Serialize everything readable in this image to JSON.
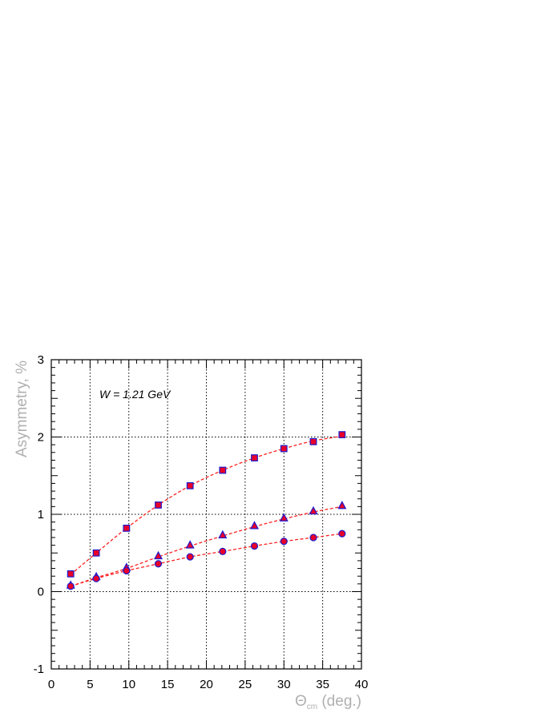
{
  "chart_data": {
    "type": "scatter",
    "title": "",
    "xlabel_main": "Θ",
    "xlabel_sub": "cm",
    "xlabel_rest": " (deg.)",
    "ylabel": "Asymmetry, %",
    "annotation": "W = 1.21 GeV",
    "xlim": [
      0,
      40
    ],
    "ylim": [
      -1,
      3
    ],
    "xticks": [
      0,
      5,
      10,
      15,
      20,
      25,
      30,
      35,
      40
    ],
    "yticks": [
      -1,
      0,
      1,
      2,
      3
    ],
    "grid": true,
    "colors": {
      "marker_fill": "#e8002a",
      "marker_edge": "#1c1cd0",
      "curve": "#ff2020",
      "frame": "#000000",
      "grid": "#000000"
    },
    "series": [
      {
        "marker": "square",
        "x": [
          2.5,
          5.8,
          9.7,
          13.8,
          17.9,
          22.1,
          26.2,
          30.0,
          33.8,
          37.5
        ],
        "y": [
          0.23,
          0.5,
          0.82,
          1.12,
          1.37,
          1.57,
          1.73,
          1.85,
          1.94,
          2.03
        ],
        "curve": [
          0.22,
          0.5,
          0.82,
          1.12,
          1.37,
          1.57,
          1.73,
          1.85,
          1.95,
          2.01
        ]
      },
      {
        "marker": "triangle",
        "x": [
          2.5,
          5.8,
          9.7,
          13.8,
          17.9,
          22.1,
          26.2,
          30.0,
          33.8,
          37.5
        ],
        "y": [
          0.08,
          0.19,
          0.31,
          0.46,
          0.6,
          0.73,
          0.85,
          0.95,
          1.04,
          1.11
        ],
        "curve": [
          0.07,
          0.18,
          0.3,
          0.45,
          0.59,
          0.72,
          0.84,
          0.94,
          1.03,
          1.1
        ]
      },
      {
        "marker": "circle",
        "x": [
          2.5,
          5.8,
          9.7,
          13.8,
          17.9,
          22.1,
          26.2,
          30.0,
          33.8,
          37.5
        ],
        "y": [
          0.07,
          0.17,
          0.27,
          0.36,
          0.45,
          0.52,
          0.59,
          0.65,
          0.7,
          0.75
        ],
        "curve": [
          0.07,
          0.17,
          0.27,
          0.36,
          0.45,
          0.52,
          0.59,
          0.65,
          0.7,
          0.75
        ]
      }
    ]
  }
}
